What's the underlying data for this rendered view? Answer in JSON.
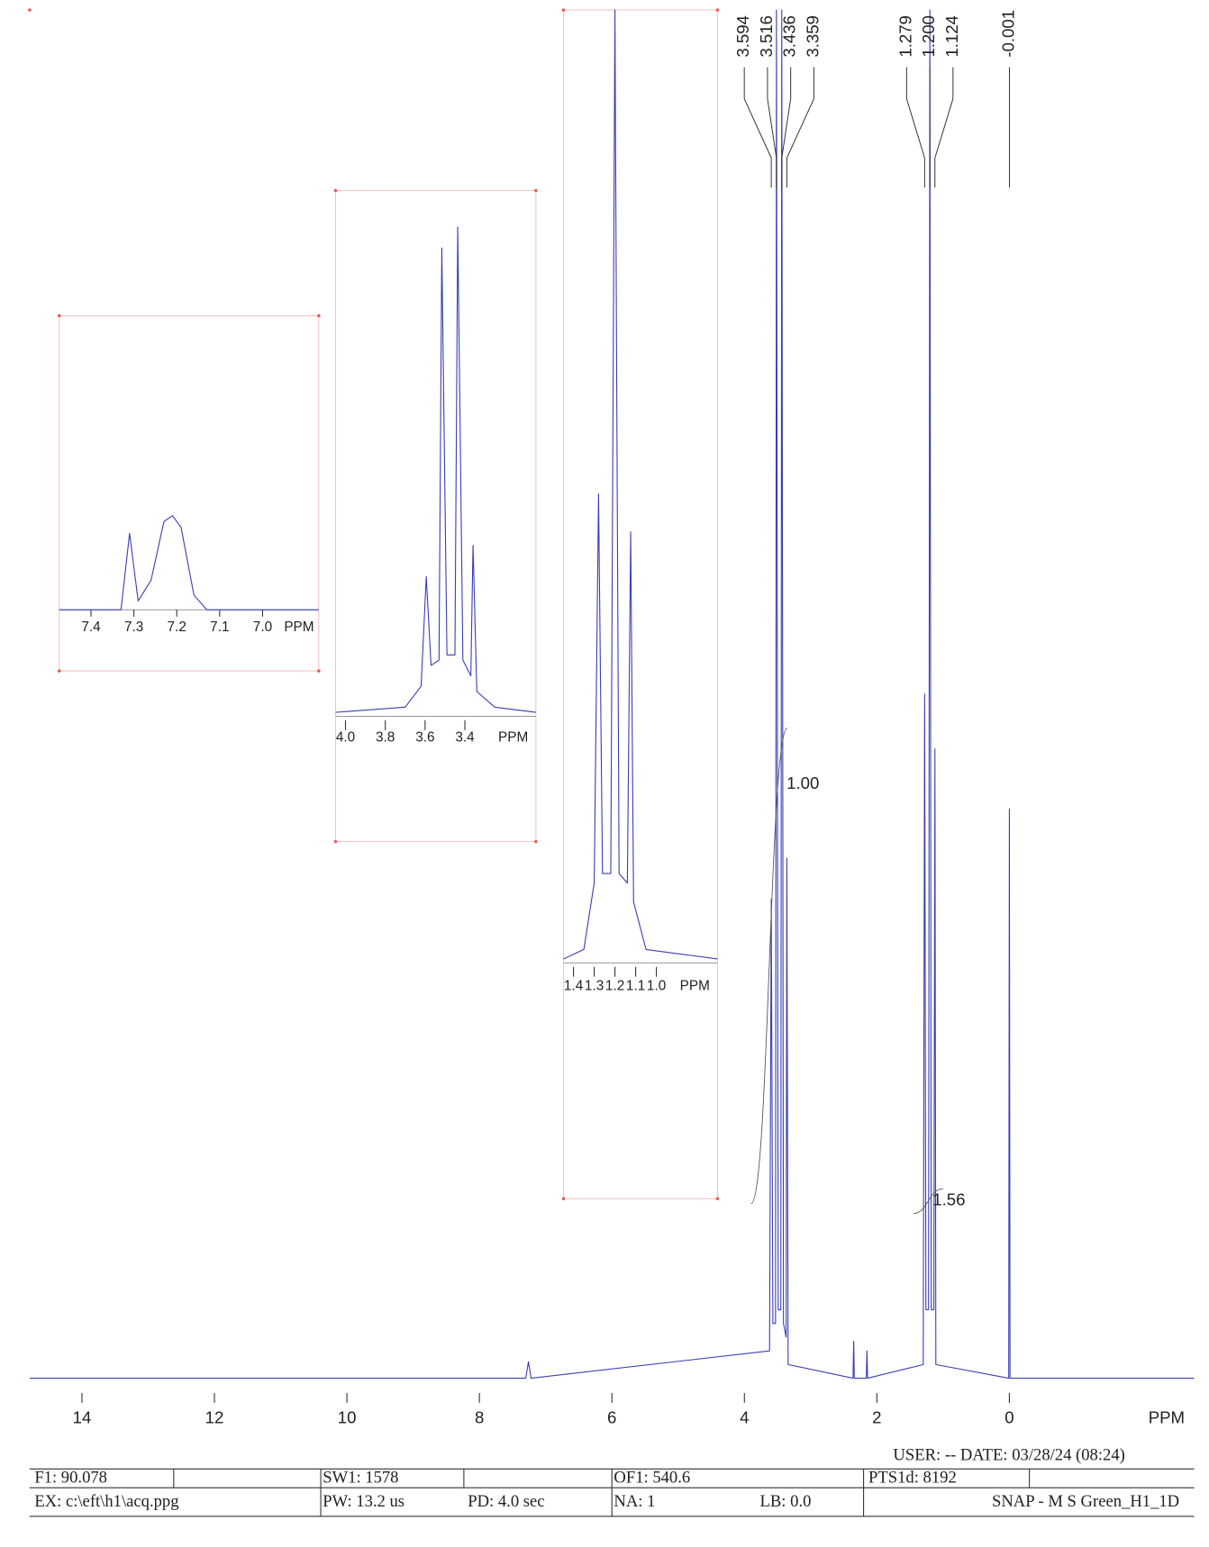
{
  "chart_data": [
    {
      "type": "line",
      "x_label": "PPM",
      "xlim": [
        14.79,
        -2.79
      ],
      "xticks": [
        14,
        12,
        10,
        8,
        6,
        4,
        2,
        0
      ],
      "ylim": [
        0,
        100
      ],
      "series": [
        {
          "color": "#3a3db3",
          "x": [
            14.79,
            7.3,
            7.26,
            7.22,
            3.62,
            3.594,
            3.57,
            3.53,
            3.516,
            3.49,
            3.45,
            3.436,
            3.41,
            3.37,
            3.359,
            3.34,
            2.36,
            2.35,
            2.34,
            2.16,
            2.15,
            2.14,
            1.3,
            1.279,
            1.26,
            1.22,
            1.2,
            1.18,
            1.14,
            1.124,
            1.11,
            0.01,
            0,
            -0.01,
            -2.79
          ],
          "values": [
            0,
            0,
            1.2,
            0,
            2,
            35,
            4,
            4,
            100,
            5,
            5,
            100,
            4,
            3,
            38,
            1,
            0,
            2.7,
            0,
            0,
            2,
            0,
            1,
            50,
            5,
            5,
            100,
            5,
            5,
            46,
            1,
            0,
            41.6,
            0,
            0
          ]
        }
      ],
      "peaks": [
        3.594,
        3.516,
        3.436,
        3.359,
        1.279,
        1.2,
        1.124,
        -0.001
      ],
      "peak_labels": [
        "3.594",
        "3.516",
        "3.436",
        "3.359",
        "1.279",
        "1.200",
        "1.124",
        "-0.001"
      ],
      "integrals": [
        {
          "value": 1,
          "label": "1.00",
          "from": 3.9,
          "to": 3.35
        },
        {
          "value": 1.56,
          "from": 1.45,
          "to": 1.0
        }
      ]
    },
    {
      "type": "line",
      "x_label": "PPM",
      "xlim": [
        7.474,
        6.869
      ],
      "xticks": [
        7.4,
        7.3,
        7.2,
        7.1,
        {
          "value": 7,
          "label": "7.0"
        }
      ],
      "ylim": [
        0,
        100
      ],
      "series": [
        {
          "color": "#3a3db3",
          "x": [
            7.474,
            7.33,
            7.31,
            7.29,
            7.26,
            7.23,
            7.21,
            7.19,
            7.16,
            7.13,
            6.869
          ],
          "values": [
            0,
            0,
            26,
            3,
            10,
            30,
            32,
            28,
            5,
            0,
            0
          ]
        }
      ]
    },
    {
      "type": "line",
      "x_label": "PPM",
      "xlim": [
        4.05,
        3.043
      ],
      "xticks": [
        {
          "value": 4,
          "label": "4.0"
        },
        3.8,
        3.6,
        3.4
      ],
      "ylim": [
        0,
        100
      ],
      "series": [
        {
          "color": "#3a3db3",
          "x": [
            4.05,
            3.7,
            3.62,
            3.594,
            3.57,
            3.53,
            3.516,
            3.49,
            3.45,
            3.436,
            3.41,
            3.37,
            3.359,
            3.34,
            3.25,
            3.043
          ],
          "values": [
            0,
            1,
            5,
            26,
            9,
            10,
            89,
            11,
            11,
            93,
            10,
            7,
            32,
            4,
            1,
            0
          ]
        }
      ]
    },
    {
      "type": "line",
      "x_label": "PPM",
      "xlim": [
        1.448,
        0.705
      ],
      "xticks": [
        1.4,
        1.3,
        1.2,
        1.1,
        {
          "value": 1,
          "label": "1.0"
        }
      ],
      "ylim": [
        0,
        100
      ],
      "series": [
        {
          "color": "#3a3db3",
          "x": [
            1.448,
            1.35,
            1.3,
            1.279,
            1.26,
            1.22,
            1.2,
            1.18,
            1.14,
            1.124,
            1.11,
            1.05,
            0.705
          ],
          "values": [
            0,
            1,
            8,
            49,
            9,
            9,
            100,
            9,
            8,
            45,
            6,
            1,
            0
          ]
        }
      ]
    }
  ],
  "footer": {
    "user_date": "USER:  -- DATE: 03/28/24  (08:24)",
    "row1": [
      "F1: 90.078",
      "SW1: 1578",
      "OF1: 540.6",
      "PTS1d: 8192"
    ],
    "row2": [
      "EX: c:\\eft\\h1\\acq.ppg",
      "PW: 13.2 us",
      "PD: 4.0   sec",
      "NA: 1",
      "LB: 0.0",
      "SNAP - M S Green_H1_1D"
    ]
  }
}
